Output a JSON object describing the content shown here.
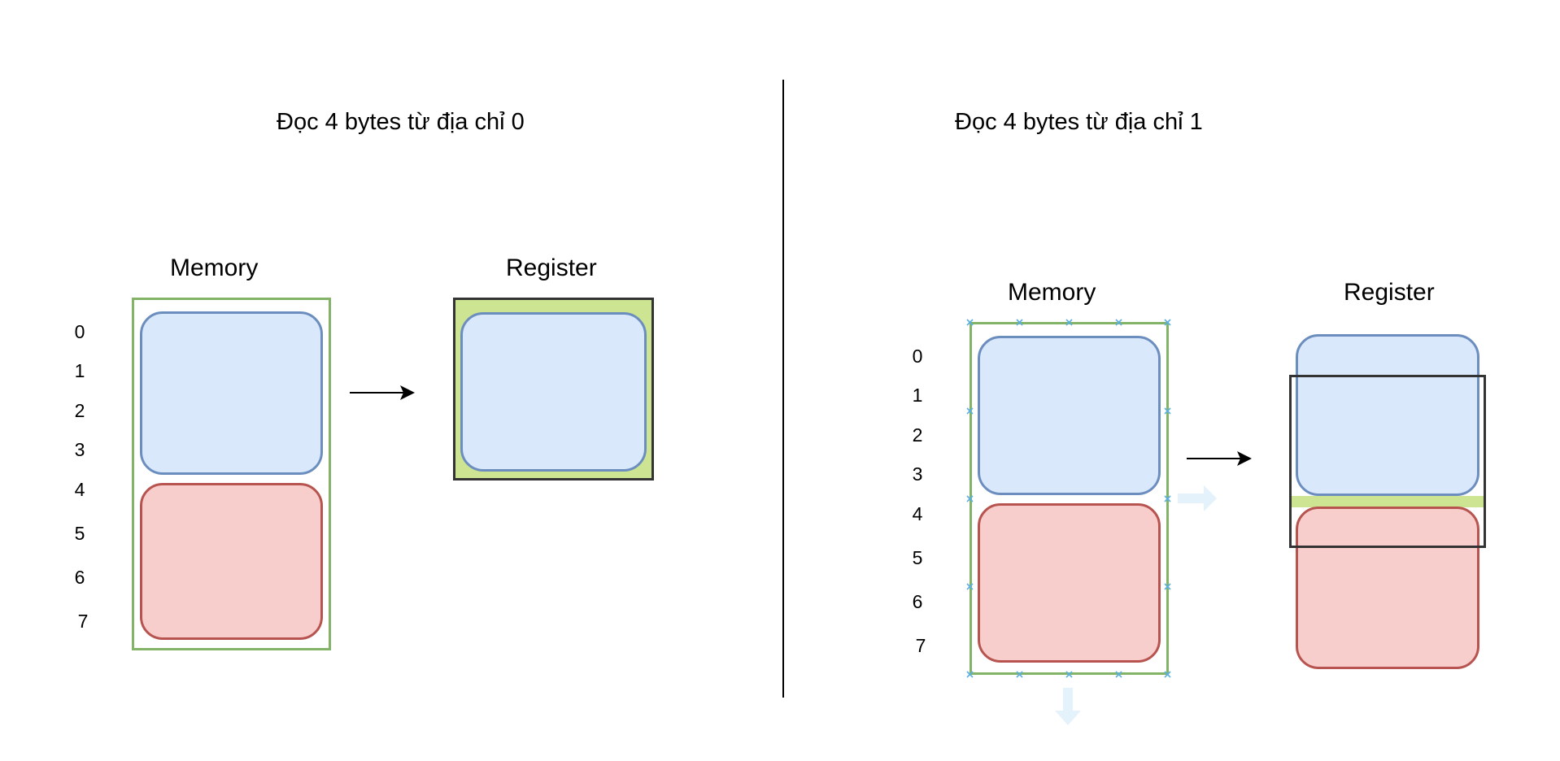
{
  "left_panel": {
    "title": "Đọc 4 bytes từ địa chỉ 0",
    "memory_label": "Memory",
    "register_label": "Register",
    "addresses": [
      "0",
      "1",
      "2",
      "3",
      "4",
      "5",
      "6",
      "7"
    ]
  },
  "right_panel": {
    "title": "Đọc 4 bytes từ địa chỉ 1",
    "memory_label": "Memory",
    "register_label": "Register",
    "addresses": [
      "0",
      "1",
      "2",
      "3",
      "4",
      "5",
      "6",
      "7"
    ]
  },
  "colors": {
    "blue_fill": "#dae8fc",
    "blue_stroke": "#6c8ebf",
    "red_fill": "#f8cecc",
    "red_stroke": "#b85450",
    "memory_frame": "#82b366",
    "register_fill": "#cde493",
    "register_stroke": "#333333",
    "selection_handle": "#5aafe0"
  },
  "icons": {
    "arrow": "right-arrow-icon",
    "selection_handle": "x-handle-icon",
    "hover_arrow": "hint-arrow-icon"
  }
}
